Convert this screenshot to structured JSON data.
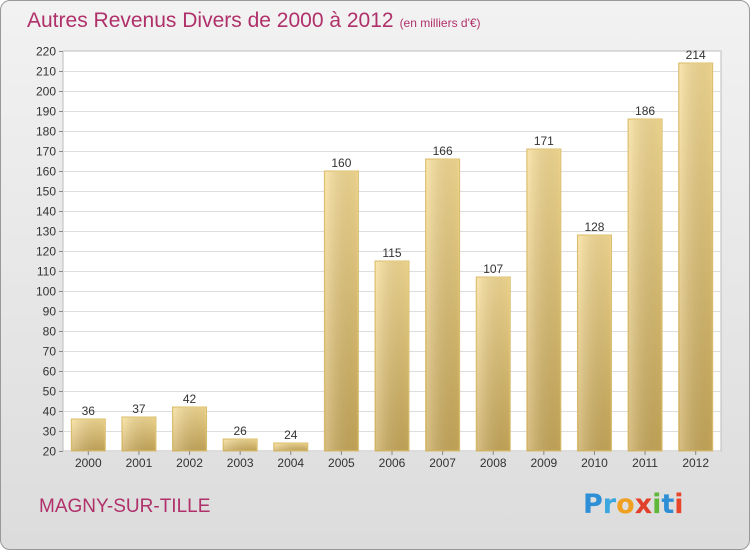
{
  "header": {
    "title": "Autres Revenus Divers de 2000 à 2012",
    "unit": "(en milliers d'€)"
  },
  "footer": {
    "place": "MAGNY-SUR-TILLE",
    "logo": [
      "P",
      "r",
      "o",
      "x",
      "i",
      "t",
      "i"
    ]
  },
  "chart_data": {
    "type": "bar",
    "title": "Autres Revenus Divers de 2000 à 2012",
    "subtitle": "(en milliers d'€)",
    "categories": [
      "2000",
      "2001",
      "2002",
      "2003",
      "2004",
      "2005",
      "2006",
      "2007",
      "2008",
      "2009",
      "2010",
      "2011",
      "2012"
    ],
    "values": [
      36,
      37,
      42,
      26,
      24,
      160,
      115,
      166,
      107,
      171,
      128,
      186,
      214
    ],
    "ylim": [
      20,
      220
    ],
    "yticks": [
      20,
      30,
      40,
      50,
      60,
      70,
      80,
      90,
      100,
      110,
      120,
      130,
      140,
      150,
      160,
      170,
      180,
      190,
      200,
      210,
      220
    ],
    "grid": true,
    "bar_color": "#e8cc82",
    "xlabel": "",
    "ylabel": ""
  }
}
